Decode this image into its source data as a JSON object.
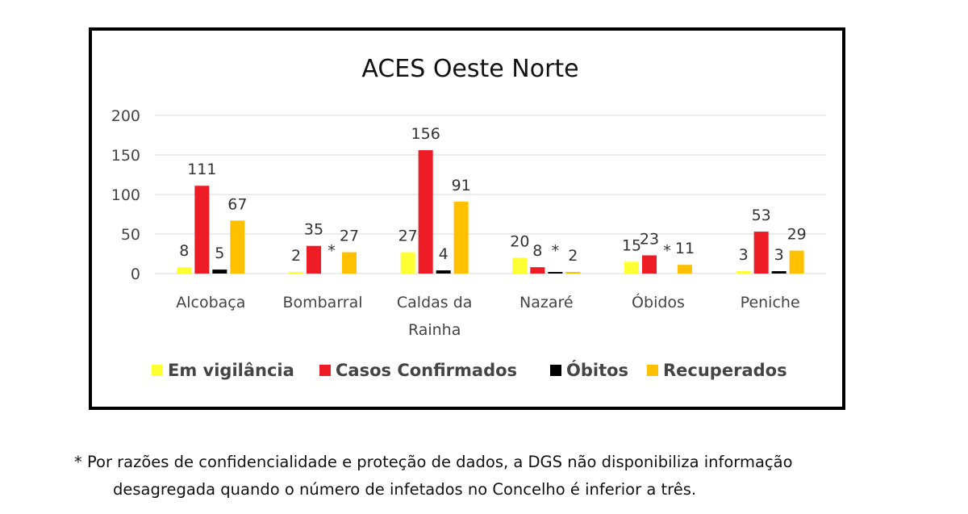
{
  "chart_data": {
    "type": "bar",
    "title": "ACES Oeste Norte",
    "categories": [
      [
        "Alcobaça"
      ],
      [
        "Bombarral"
      ],
      [
        "Caldas da",
        "Rainha"
      ],
      [
        "Nazaré"
      ],
      [
        "Óbidos"
      ],
      [
        "Peniche"
      ]
    ],
    "ylim": [
      0,
      200
    ],
    "yticks": [
      0,
      50,
      100,
      150,
      200
    ],
    "grid": true,
    "legend_position": "bottom",
    "series": [
      {
        "name": "Em vigilância",
        "color": "#FFFF33",
        "values": [
          8,
          2,
          27,
          20,
          15,
          3
        ],
        "labels": [
          "8",
          "2",
          "27",
          "20",
          "15",
          "3"
        ]
      },
      {
        "name": "Casos Confirmados",
        "color": "#EE1C24",
        "values": [
          111,
          35,
          156,
          8,
          23,
          53
        ],
        "labels": [
          "111",
          "35",
          "156",
          "8",
          "23",
          "53"
        ]
      },
      {
        "name": "Óbitos",
        "color": "#000000",
        "values": [
          5,
          0,
          4,
          2,
          0,
          3
        ],
        "labels": [
          "5",
          "*",
          "4",
          "*",
          "*",
          "3"
        ]
      },
      {
        "name": "Recuperados",
        "color": "#FFC000",
        "values": [
          67,
          27,
          91,
          2,
          11,
          29
        ],
        "labels": [
          "67",
          "27",
          "91",
          "2",
          "11",
          "29"
        ]
      }
    ]
  },
  "footnote": {
    "line1": "* Por razões de confidencialidade e proteção de dados, a DGS não disponibiliza informação",
    "line2": "desagregada quando o número de infetados no Concelho é inferior a três."
  }
}
